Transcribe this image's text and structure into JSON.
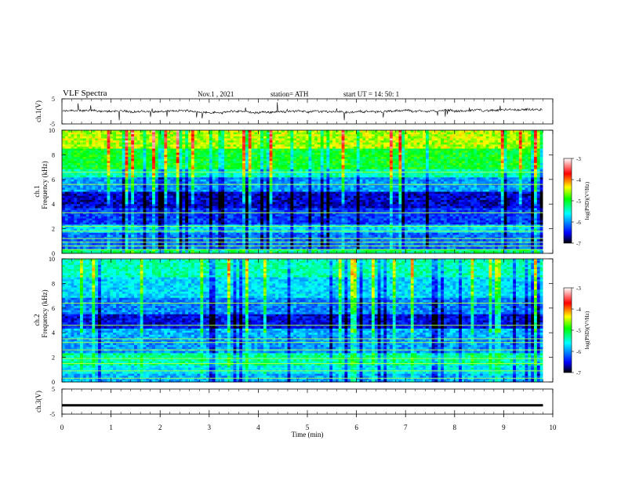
{
  "header": {
    "title": "VLF  Spectra",
    "date": "Nov.1  , 2021",
    "station": "station= ATH",
    "start": "start  UT  =    14: 50: 1"
  },
  "chart_data": [
    {
      "id": "ch1-waveform",
      "type": "line",
      "ylabel": "ch.1(V)",
      "ylim": [
        -5,
        5
      ],
      "yticks": [
        "5",
        "-5"
      ],
      "xlim": [
        0,
        10
      ],
      "description_color": "#000000"
    },
    {
      "id": "ch1-spectrogram",
      "type": "heatmap",
      "ylabel_line1": "ch.1",
      "ylabel_line2": "Frequency  (kHz)",
      "ylim": [
        0,
        10
      ],
      "yticks": [
        "0",
        "2",
        "4",
        "6",
        "8",
        "10"
      ],
      "xlim": [
        0,
        10
      ],
      "data_xmax": 9.8,
      "colorbar": {
        "label": "log(PSD)(V²/Hz)",
        "range": [
          -7,
          -3
        ],
        "ticks": [
          "-3",
          "-4",
          "-5",
          "-6",
          "-7"
        ],
        "colors": [
          "#000000",
          "#0000ff",
          "#00ffff",
          "#00ff00",
          "#ffff00",
          "#ff0000",
          "#ffffff"
        ]
      }
    },
    {
      "id": "ch2-spectrogram",
      "type": "heatmap",
      "ylabel_line1": "ch.2",
      "ylabel_line2": "Frequency  (kHz)",
      "ylim": [
        0,
        10
      ],
      "yticks": [
        "0",
        "2",
        "4",
        "6",
        "8",
        "10"
      ],
      "xlim": [
        0,
        10
      ],
      "data_xmax": 9.8,
      "colorbar": {
        "label": "log(PSD)(V²/Hz)",
        "range": [
          -7,
          -3
        ],
        "ticks": [
          "-3",
          "-4",
          "-5",
          "-6",
          "-7"
        ],
        "colors": [
          "#000000",
          "#0000ff",
          "#00ffff",
          "#00ff00",
          "#ffff00",
          "#ff0000",
          "#ffffff"
        ]
      }
    },
    {
      "id": "ch3-waveform",
      "type": "line",
      "ylabel": "ch.3(V)",
      "ylim": [
        -5,
        5
      ],
      "yticks": [
        "5",
        "-5"
      ],
      "xlim": [
        0,
        10
      ],
      "value": -1.5
    }
  ],
  "xaxis": {
    "label": "Time  (min)",
    "ticks": [
      "0",
      "1",
      "2",
      "3",
      "4",
      "5",
      "6",
      "7",
      "8",
      "9",
      "10"
    ]
  }
}
